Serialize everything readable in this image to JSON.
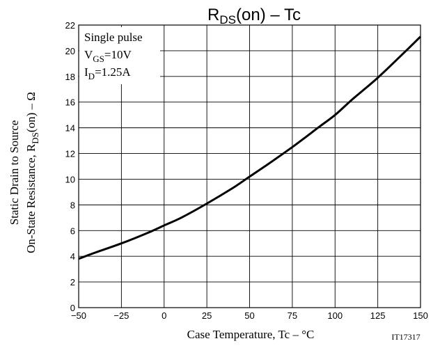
{
  "chart_data": {
    "type": "line",
    "title_main": "R",
    "title_sub": "DS",
    "title_rest": "(on)  –  Tc",
    "xlabel": "Case Temperature, Tc  –  °C",
    "ylabel_line1": "Static Drain to Source",
    "ylabel_line2_pre": "On-State Resistance, R",
    "ylabel_line2_sub": "DS",
    "ylabel_line2_post": "(on)  –  Ω",
    "code": "IT17317",
    "xlim": [
      -50,
      150
    ],
    "ylim": [
      0,
      22
    ],
    "xticks": [
      -50,
      -25,
      0,
      25,
      50,
      75,
      100,
      125,
      150
    ],
    "xtick_labels": [
      "−50",
      "−25",
      "0",
      "25",
      "50",
      "75",
      "100",
      "125",
      "150"
    ],
    "yticks": [
      0,
      2,
      4,
      6,
      8,
      10,
      12,
      14,
      16,
      18,
      20,
      22
    ],
    "grid": true,
    "annotation": {
      "line1": "Single pulse",
      "line2_pre": "V",
      "line2_sub": "GS",
      "line2_post": "=10V",
      "line3_pre": "I",
      "line3_sub": "D",
      "line3_post": "=1.25A"
    },
    "series": [
      {
        "x": [
          -50,
          -40,
          -25,
          -10,
          0,
          10,
          25,
          40,
          50,
          60,
          75,
          90,
          100,
          110,
          125,
          140,
          150
        ],
        "y": [
          3.8,
          4.3,
          5.0,
          5.8,
          6.4,
          7.0,
          8.1,
          9.3,
          10.2,
          11.1,
          12.5,
          14.0,
          15.0,
          16.2,
          17.9,
          19.8,
          21.1
        ]
      }
    ]
  }
}
